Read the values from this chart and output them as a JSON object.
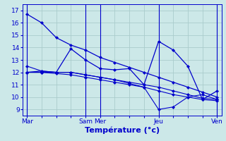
{
  "xlabel": "Température (°c)",
  "ylim": [
    8.5,
    17.5
  ],
  "yticks": [
    9,
    10,
    11,
    12,
    13,
    14,
    15,
    16,
    17
  ],
  "background_color": "#cce8e8",
  "grid_color": "#aacccc",
  "line_color": "#0000cc",
  "xtick_labels": [
    "Mar",
    "",
    "",
    "",
    "Sam",
    "Mer",
    "",
    "",
    "",
    "Jeu",
    "",
    "",
    "",
    "Ven"
  ],
  "xtick_positions": [
    0,
    1,
    2,
    3,
    4,
    5,
    6,
    7,
    8,
    9,
    10,
    11,
    12,
    13
  ],
  "series": {
    "line_top": [
      16.7,
      16.0,
      14.8,
      14.2,
      13.8,
      13.2,
      12.8,
      12.4,
      12.0,
      11.6,
      11.2,
      10.8,
      10.4,
      10.0
    ],
    "line_mid_flat": [
      12.5,
      12.1,
      12.0,
      12.0,
      11.8,
      11.6,
      11.4,
      11.2,
      11.0,
      10.8,
      10.5,
      10.2,
      9.9,
      9.8
    ],
    "line_zigzag": [
      12.0,
      12.1,
      12.0,
      13.9,
      13.0,
      12.3,
      12.2,
      12.3,
      11.0,
      14.5,
      13.8,
      12.5,
      9.8,
      10.5
    ],
    "line_low1": [
      12.0,
      12.0,
      12.0,
      12.0,
      11.8,
      11.6,
      11.4,
      11.1,
      10.8,
      9.0,
      9.2,
      10.0,
      10.2,
      9.8
    ],
    "line_low2": [
      12.0,
      12.0,
      11.9,
      11.8,
      11.6,
      11.4,
      11.2,
      11.0,
      10.8,
      10.5,
      10.2,
      10.0,
      9.8,
      9.7
    ]
  },
  "vline_positions": [
    0,
    4,
    5,
    9,
    13
  ],
  "xlabel_fontsize": 8,
  "tick_fontsize": 6.5,
  "figsize": [
    3.2,
    2.0
  ],
  "dpi": 100
}
